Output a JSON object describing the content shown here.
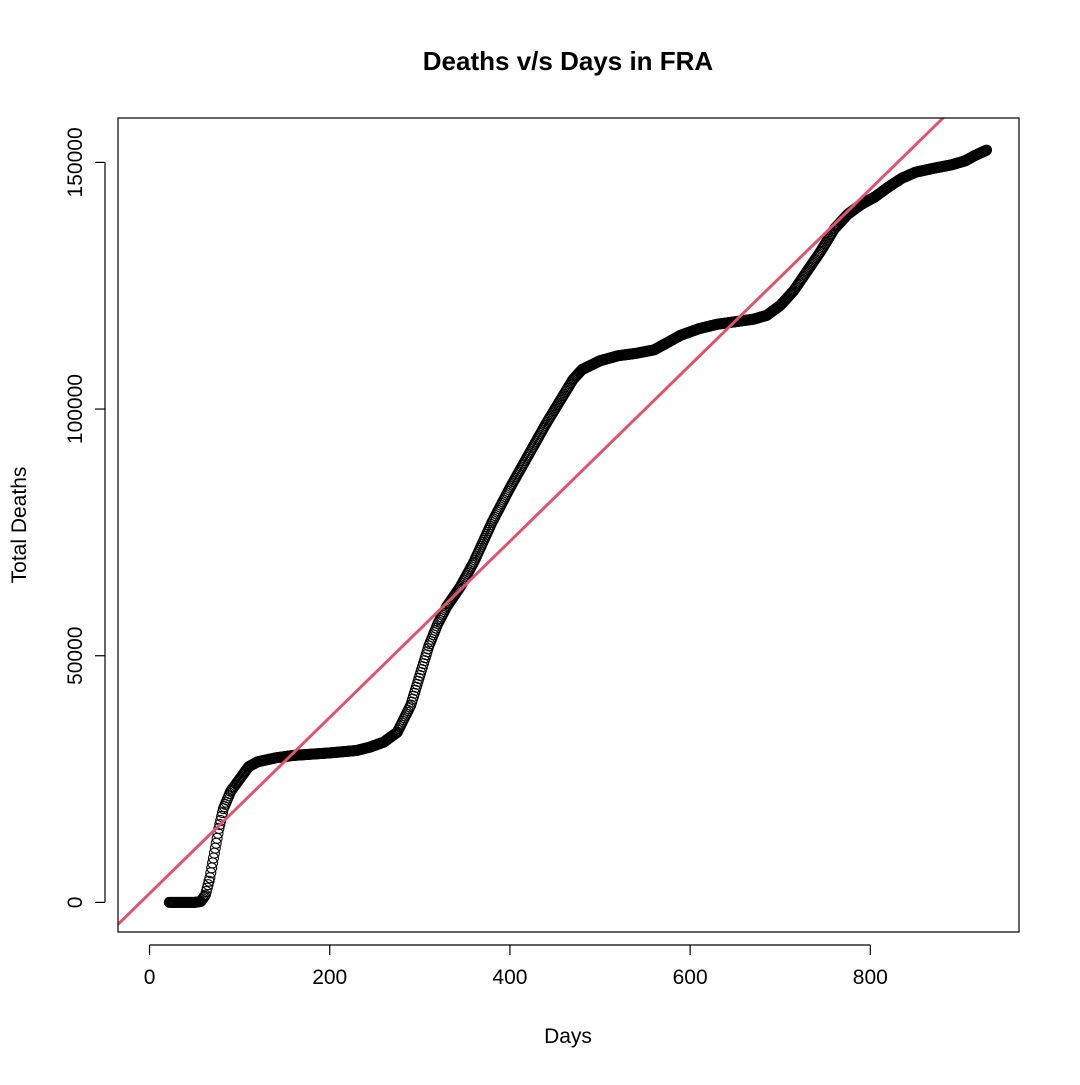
{
  "chart_data": {
    "type": "scatter",
    "title": "Deaths v/s Days in FRA",
    "xlabel": "Days",
    "ylabel": "Total Deaths",
    "xlim": [
      -35,
      965
    ],
    "ylim": [
      -6000,
      159000
    ],
    "x_ticks": [
      0,
      200,
      400,
      600,
      800
    ],
    "y_ticks": [
      0,
      50000,
      100000,
      150000
    ],
    "x_tick_labels": [
      "0",
      "200",
      "400",
      "600",
      "800"
    ],
    "y_tick_labels": [
      "0",
      "50000",
      "100000",
      "150000"
    ],
    "grid": false,
    "legend": "none",
    "series": [
      {
        "kind": "points",
        "marker": "open-circle",
        "color": "#000000",
        "x_start": 22,
        "x_end": 929,
        "x_step": 1,
        "profile": [
          [
            22,
            0
          ],
          [
            50,
            0
          ],
          [
            57,
            200
          ],
          [
            62,
            1500
          ],
          [
            67,
            5000
          ],
          [
            72,
            10000
          ],
          [
            77,
            15000
          ],
          [
            82,
            19000
          ],
          [
            90,
            22500
          ],
          [
            100,
            25000
          ],
          [
            110,
            27500
          ],
          [
            120,
            28500
          ],
          [
            140,
            29300
          ],
          [
            160,
            29800
          ],
          [
            200,
            30300
          ],
          [
            230,
            30800
          ],
          [
            245,
            31500
          ],
          [
            260,
            32500
          ],
          [
            275,
            34500
          ],
          [
            290,
            40000
          ],
          [
            300,
            46000
          ],
          [
            310,
            52000
          ],
          [
            320,
            56500
          ],
          [
            330,
            60000
          ],
          [
            345,
            64000
          ],
          [
            360,
            69000
          ],
          [
            380,
            77000
          ],
          [
            400,
            84000
          ],
          [
            420,
            90500
          ],
          [
            440,
            97000
          ],
          [
            460,
            103000
          ],
          [
            470,
            106000
          ],
          [
            480,
            108000
          ],
          [
            500,
            109800
          ],
          [
            520,
            110800
          ],
          [
            540,
            111300
          ],
          [
            560,
            112000
          ],
          [
            575,
            113500
          ],
          [
            590,
            115000
          ],
          [
            610,
            116300
          ],
          [
            630,
            117200
          ],
          [
            650,
            117700
          ],
          [
            670,
            118200
          ],
          [
            685,
            119000
          ],
          [
            700,
            121000
          ],
          [
            715,
            124000
          ],
          [
            730,
            128000
          ],
          [
            745,
            132000
          ],
          [
            760,
            136500
          ],
          [
            775,
            139500
          ],
          [
            790,
            141500
          ],
          [
            805,
            143000
          ],
          [
            820,
            145000
          ],
          [
            835,
            146800
          ],
          [
            850,
            148000
          ],
          [
            870,
            148800
          ],
          [
            890,
            149500
          ],
          [
            905,
            150300
          ],
          [
            915,
            151300
          ],
          [
            929,
            152500
          ]
        ]
      },
      {
        "kind": "regression-line",
        "color": "#DF536B",
        "intercept": 1800,
        "slope": 178.5
      }
    ]
  }
}
